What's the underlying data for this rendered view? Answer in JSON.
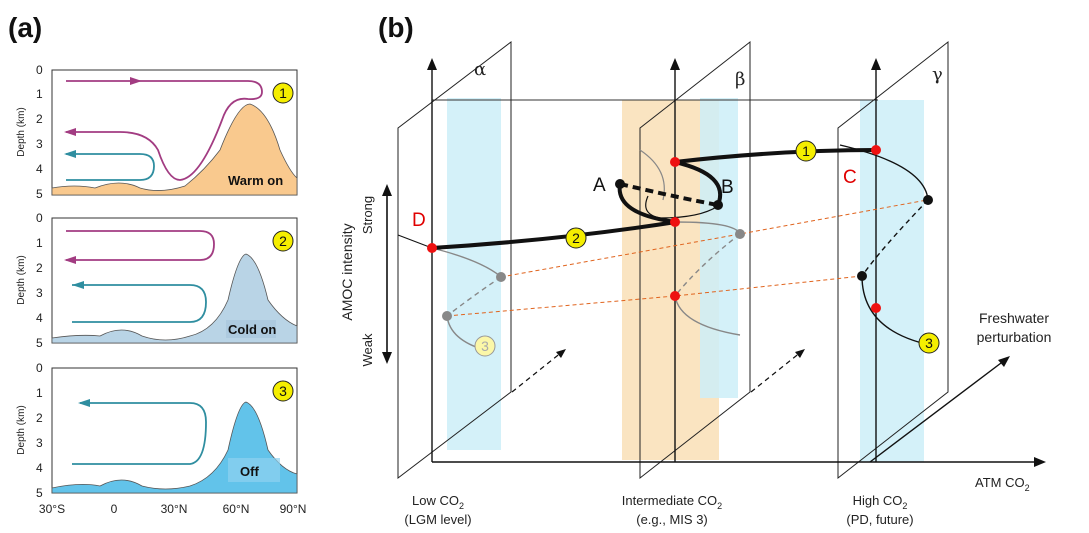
{
  "panel_a": {
    "label": "(a)",
    "ylabel": "Depth (km)",
    "depth_ticks": [
      "0",
      "1",
      "2",
      "3",
      "4",
      "5"
    ],
    "lat_ticks": [
      "30°S",
      "0",
      "30°N",
      "60°N",
      "90°N"
    ],
    "modes": [
      {
        "badge": "1",
        "state": "Warm on"
      },
      {
        "badge": "2",
        "state": "Cold on"
      },
      {
        "badge": "3",
        "state": "Off"
      }
    ]
  },
  "panel_b": {
    "label": "(b)",
    "yaxis": "AMOC intensity",
    "strong": "Strong",
    "weak": "Weak",
    "xaxis": "ATM CO",
    "xaxis_sub": "2",
    "depth_axis_line1": "Freshwater",
    "depth_axis_line2": "perturbation",
    "planes": [
      {
        "greek": "α",
        "line1": "Low CO",
        "sub": "2",
        "line2": "(LGM level)"
      },
      {
        "greek": "β",
        "line1": "Intermediate CO",
        "sub": "2",
        "line2": "(e.g., MIS 3)"
      },
      {
        "greek": "γ",
        "line1": "High CO",
        "sub": "2",
        "line2": "(PD, future)"
      }
    ],
    "points": {
      "A": "A",
      "B": "B",
      "C": "C",
      "D": "D"
    },
    "badges": [
      "1",
      "2",
      "3",
      "3"
    ]
  }
}
